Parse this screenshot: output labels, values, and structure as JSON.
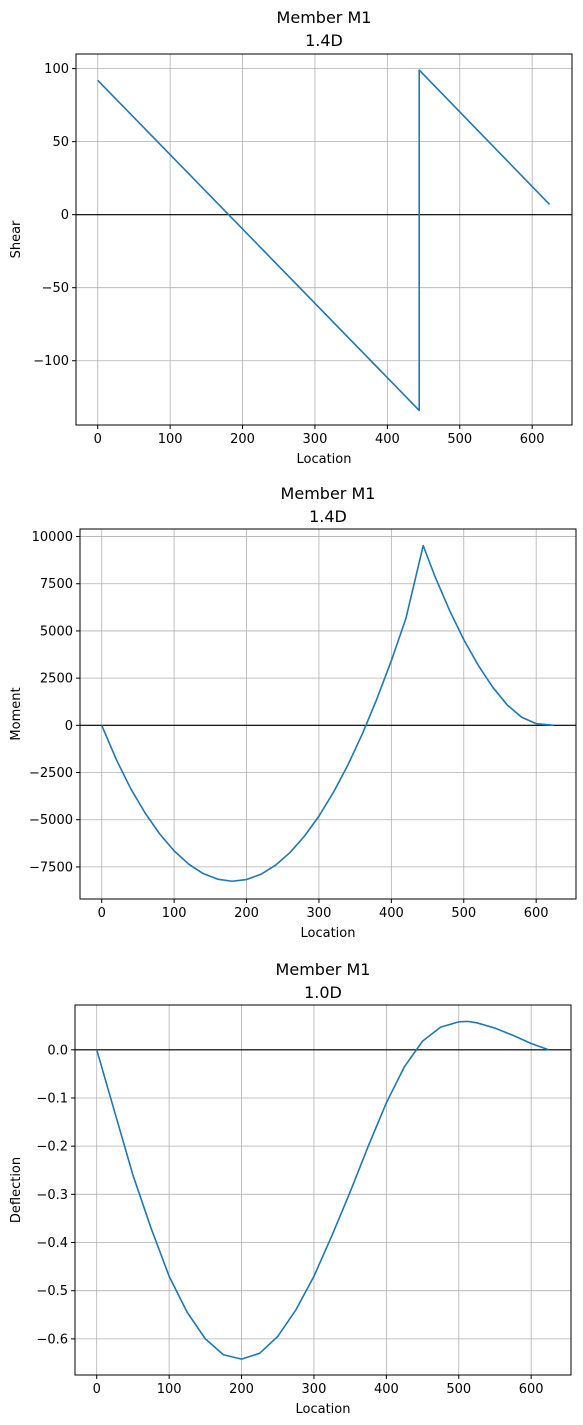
{
  "chart_data": [
    {
      "type": "line",
      "title": [
        "Member M1",
        "1.4D"
      ],
      "xlabel": "Location",
      "ylabel": "Shear",
      "xlim": [
        -30,
        655
      ],
      "ylim": [
        -144,
        110
      ],
      "xticks": [
        0,
        100,
        200,
        300,
        400,
        500,
        600
      ],
      "xtick_labels": [
        "0",
        "100",
        "200",
        "300",
        "400",
        "500",
        "600"
      ],
      "yticks": [
        100,
        50,
        0,
        -50,
        -100
      ],
      "ytick_labels": [
        "100",
        "50",
        "0",
        "−50",
        "−100"
      ],
      "grid": true,
      "zero_line": true,
      "series": [
        {
          "x": [
            0,
            444,
            444,
            624
          ],
          "y": [
            92,
            -134,
            99,
            7
          ],
          "color": "#1f77b4"
        }
      ]
    },
    {
      "type": "line",
      "title": [
        "Member M1",
        "1.4D"
      ],
      "xlabel": "Location",
      "ylabel": "Moment",
      "xlim": [
        -30,
        655
      ],
      "ylim": [
        -9200,
        10400
      ],
      "xticks": [
        0,
        100,
        200,
        300,
        400,
        500,
        600
      ],
      "xtick_labels": [
        "0",
        "100",
        "200",
        "300",
        "400",
        "500",
        "600"
      ],
      "yticks": [
        10000,
        7500,
        5000,
        2500,
        0,
        -2500,
        -5000,
        -7500
      ],
      "ytick_labels": [
        "10000",
        "7500",
        "5000",
        "2500",
        "0",
        "−2500",
        "−5000",
        "−7500"
      ],
      "grid": true,
      "zero_line": true,
      "series": [
        {
          "x": [
            0,
            20,
            40,
            60,
            80,
            100,
            120,
            140,
            160,
            180,
            200,
            220,
            240,
            260,
            280,
            300,
            320,
            340,
            360,
            380,
            400,
            420,
            444,
            460,
            480,
            500,
            520,
            540,
            560,
            580,
            600,
            624
          ],
          "y": [
            0,
            -1800,
            -3350,
            -4650,
            -5750,
            -6650,
            -7350,
            -7850,
            -8150,
            -8260,
            -8170,
            -7890,
            -7410,
            -6740,
            -5870,
            -4810,
            -3550,
            -2100,
            -450,
            1400,
            3430,
            5650,
            9520,
            7910,
            6120,
            4540,
            3180,
            2020,
            1080,
            430,
            90,
            0
          ],
          "color": "#1f77b4"
        }
      ]
    },
    {
      "type": "line",
      "title": [
        "Member M1",
        "1.0D"
      ],
      "xlabel": "Location",
      "ylabel": "Deflection",
      "xlim": [
        -30,
        655
      ],
      "ylim": [
        -0.675,
        0.093
      ],
      "xticks": [
        0,
        100,
        200,
        300,
        400,
        500,
        600
      ],
      "xtick_labels": [
        "0",
        "100",
        "200",
        "300",
        "400",
        "500",
        "600"
      ],
      "yticks": [
        0.0,
        -0.1,
        -0.2,
        -0.3,
        -0.4,
        -0.5,
        -0.6
      ],
      "ytick_labels": [
        "0.0",
        "−0.1",
        "−0.2",
        "−0.3",
        "−0.4",
        "−0.5",
        "−0.6"
      ],
      "grid": true,
      "zero_line": true,
      "series": [
        {
          "x": [
            0,
            25,
            50,
            75,
            100,
            125,
            150,
            175,
            200,
            225,
            250,
            275,
            300,
            325,
            350,
            375,
            400,
            425,
            450,
            475,
            500,
            512,
            525,
            550,
            575,
            600,
            624
          ],
          "y": [
            0,
            -0.13,
            -0.26,
            -0.37,
            -0.47,
            -0.545,
            -0.6,
            -0.633,
            -0.642,
            -0.63,
            -0.595,
            -0.54,
            -0.47,
            -0.385,
            -0.295,
            -0.2,
            -0.11,
            -0.035,
            0.018,
            0.047,
            0.058,
            0.059,
            0.056,
            0.045,
            0.03,
            0.013,
            0
          ]
        }
      ]
    }
  ]
}
